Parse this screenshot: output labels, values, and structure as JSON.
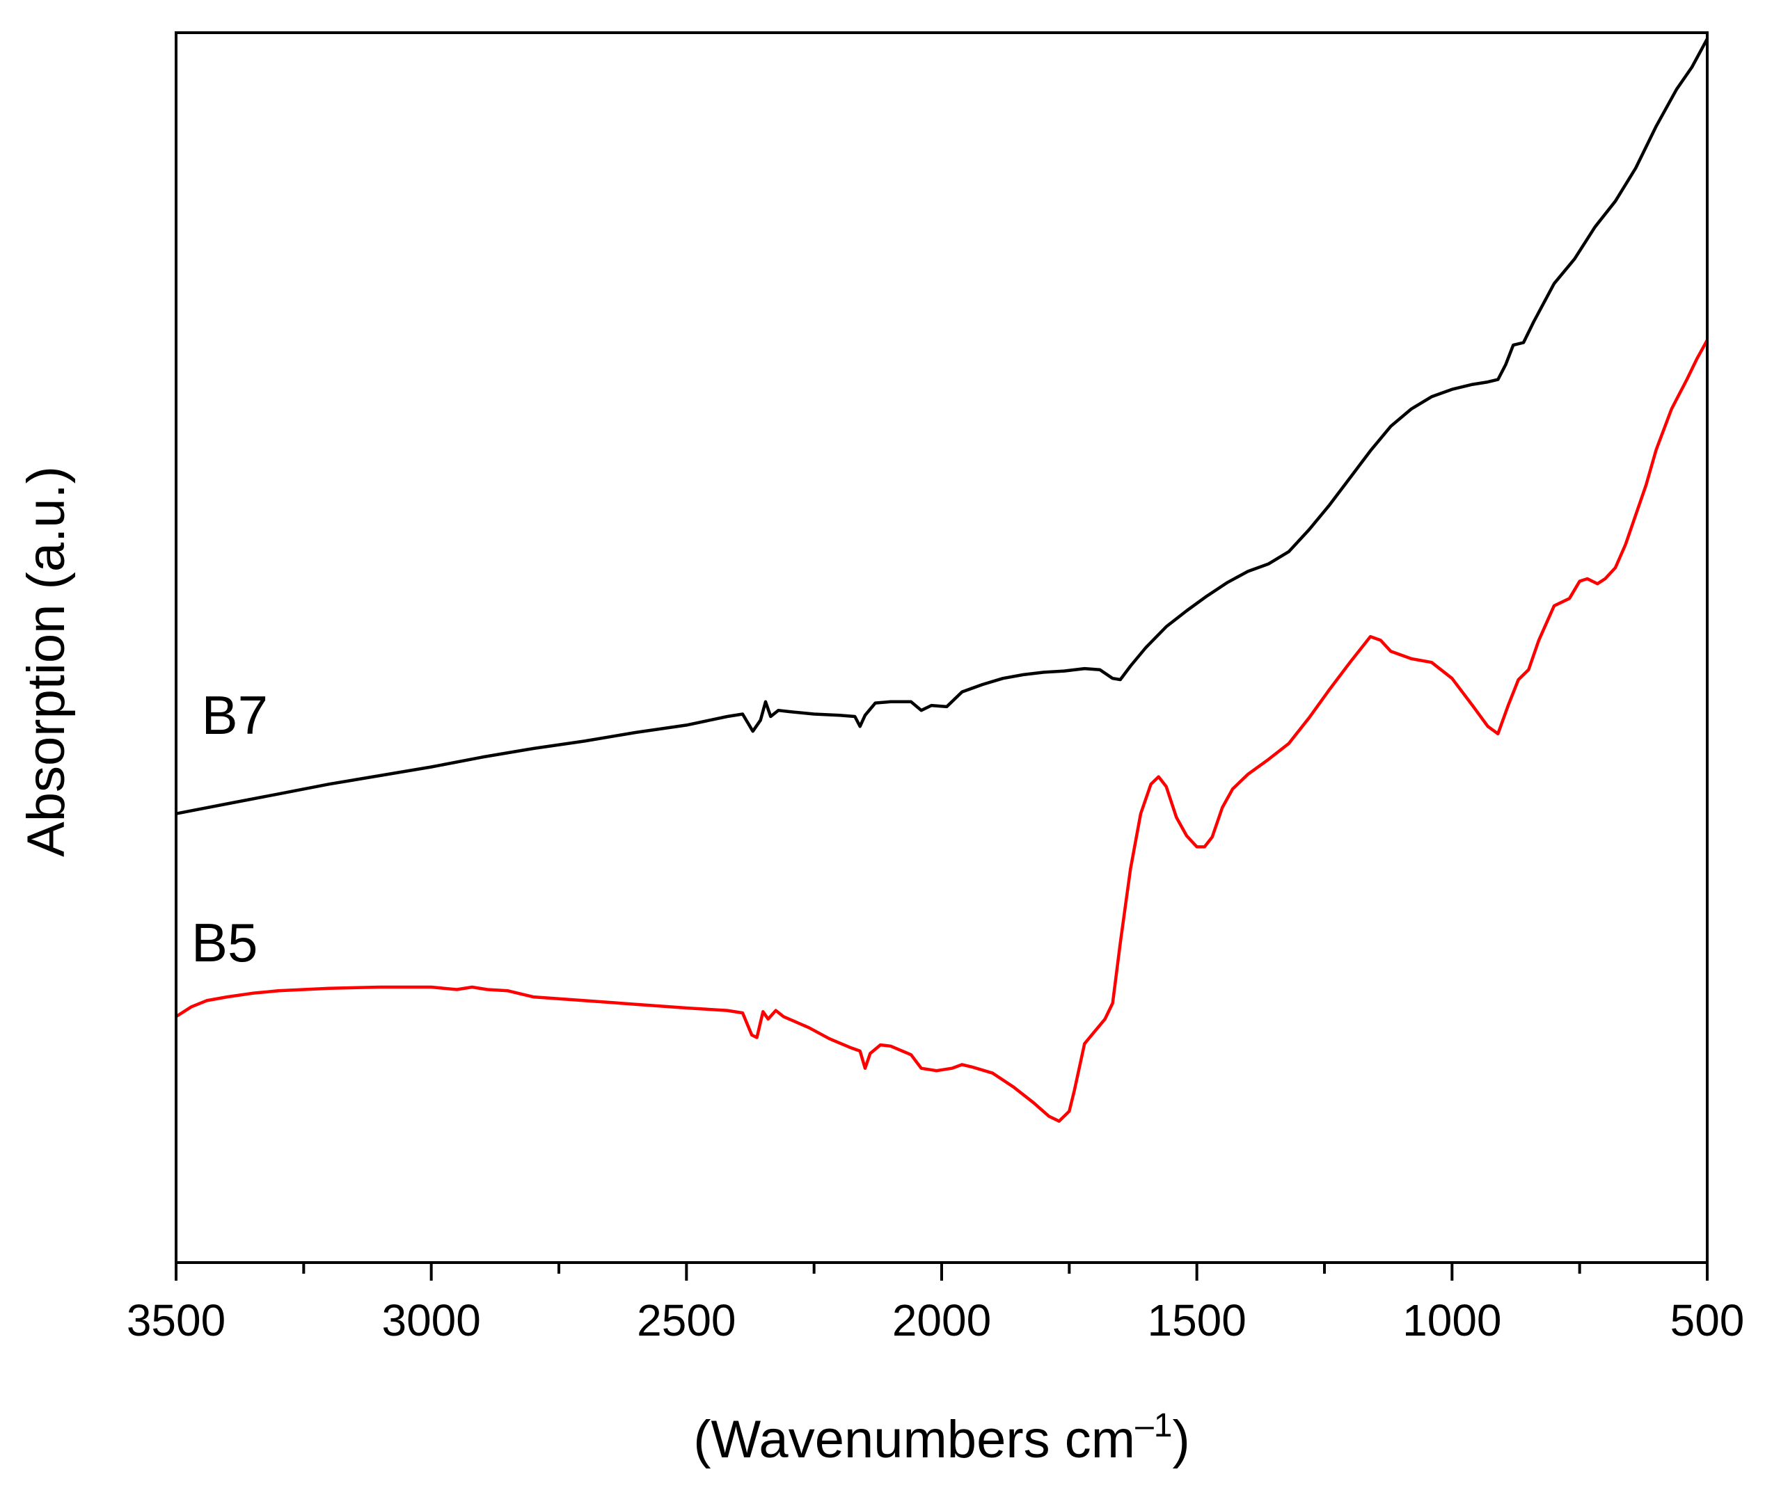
{
  "chart_data": {
    "type": "line",
    "xlabel": "(Wavenumbers cm",
    "xlabel_sup": "–1",
    "xlabel_close": ")",
    "ylabel": "Absorption (a.u.)",
    "xlim": [
      3500,
      500
    ],
    "ylim": [
      0,
      100
    ],
    "x_reversed": true,
    "y_ticks_shown": false,
    "grid": false,
    "x_ticks": [
      {
        "value": 3500,
        "label": "3500"
      },
      {
        "value": 3000,
        "label": "3000"
      },
      {
        "value": 2500,
        "label": "2500"
      },
      {
        "value": 2000,
        "label": "2000"
      },
      {
        "value": 1500,
        "label": "1500"
      },
      {
        "value": 1000,
        "label": "1000"
      },
      {
        "value": 500,
        "label": "500"
      }
    ],
    "x_minor_ticks": [
      3250,
      2750,
      2250,
      1750,
      1250,
      750
    ],
    "series": [
      {
        "name": "B7",
        "color": "#000000",
        "label_at": [
          3450,
          43
        ],
        "points": [
          [
            3500,
            36.5
          ],
          [
            3400,
            37.3
          ],
          [
            3300,
            38.1
          ],
          [
            3200,
            38.9
          ],
          [
            3100,
            39.6
          ],
          [
            3000,
            40.3
          ],
          [
            2900,
            41.1
          ],
          [
            2800,
            41.8
          ],
          [
            2700,
            42.4
          ],
          [
            2600,
            43.1
          ],
          [
            2500,
            43.7
          ],
          [
            2420,
            44.4
          ],
          [
            2390,
            44.6
          ],
          [
            2370,
            43.2
          ],
          [
            2355,
            44.1
          ],
          [
            2345,
            45.6
          ],
          [
            2335,
            44.4
          ],
          [
            2320,
            44.9
          ],
          [
            2300,
            44.8
          ],
          [
            2250,
            44.6
          ],
          [
            2200,
            44.5
          ],
          [
            2170,
            44.4
          ],
          [
            2160,
            43.6
          ],
          [
            2150,
            44.5
          ],
          [
            2130,
            45.5
          ],
          [
            2100,
            45.6
          ],
          [
            2060,
            45.6
          ],
          [
            2040,
            44.9
          ],
          [
            2020,
            45.3
          ],
          [
            1990,
            45.2
          ],
          [
            1960,
            46.4
          ],
          [
            1920,
            47.0
          ],
          [
            1880,
            47.5
          ],
          [
            1840,
            47.8
          ],
          [
            1800,
            48.0
          ],
          [
            1760,
            48.1
          ],
          [
            1720,
            48.3
          ],
          [
            1690,
            48.2
          ],
          [
            1665,
            47.5
          ],
          [
            1650,
            47.4
          ],
          [
            1630,
            48.5
          ],
          [
            1600,
            50.0
          ],
          [
            1560,
            51.7
          ],
          [
            1520,
            53.0
          ],
          [
            1480,
            54.2
          ],
          [
            1440,
            55.3
          ],
          [
            1400,
            56.2
          ],
          [
            1360,
            56.8
          ],
          [
            1320,
            57.8
          ],
          [
            1280,
            59.6
          ],
          [
            1240,
            61.6
          ],
          [
            1200,
            63.8
          ],
          [
            1160,
            66.0
          ],
          [
            1120,
            68.0
          ],
          [
            1080,
            69.4
          ],
          [
            1040,
            70.4
          ],
          [
            1000,
            71.0
          ],
          [
            960,
            71.4
          ],
          [
            930,
            71.6
          ],
          [
            910,
            71.8
          ],
          [
            895,
            73.0
          ],
          [
            880,
            74.6
          ],
          [
            860,
            74.8
          ],
          [
            840,
            76.5
          ],
          [
            800,
            79.6
          ],
          [
            760,
            81.6
          ],
          [
            720,
            84.2
          ],
          [
            680,
            86.3
          ],
          [
            640,
            89.0
          ],
          [
            600,
            92.4
          ],
          [
            560,
            95.4
          ],
          [
            530,
            97.2
          ],
          [
            500,
            99.5
          ]
        ]
      },
      {
        "name": "B5",
        "color": "#ff0000",
        "label_at": [
          3470,
          24.5
        ],
        "points": [
          [
            3500,
            20.0
          ],
          [
            3470,
            20.8
          ],
          [
            3440,
            21.3
          ],
          [
            3400,
            21.6
          ],
          [
            3350,
            21.9
          ],
          [
            3300,
            22.1
          ],
          [
            3250,
            22.2
          ],
          [
            3200,
            22.3
          ],
          [
            3100,
            22.4
          ],
          [
            3000,
            22.4
          ],
          [
            2950,
            22.2
          ],
          [
            2920,
            22.4
          ],
          [
            2890,
            22.2
          ],
          [
            2850,
            22.1
          ],
          [
            2800,
            21.6
          ],
          [
            2700,
            21.3
          ],
          [
            2600,
            21.0
          ],
          [
            2500,
            20.7
          ],
          [
            2420,
            20.5
          ],
          [
            2390,
            20.3
          ],
          [
            2372,
            18.5
          ],
          [
            2362,
            18.3
          ],
          [
            2350,
            20.4
          ],
          [
            2340,
            19.8
          ],
          [
            2325,
            20.5
          ],
          [
            2310,
            20.0
          ],
          [
            2260,
            19.1
          ],
          [
            2220,
            18.2
          ],
          [
            2180,
            17.5
          ],
          [
            2160,
            17.2
          ],
          [
            2150,
            15.8
          ],
          [
            2140,
            17.0
          ],
          [
            2120,
            17.7
          ],
          [
            2100,
            17.6
          ],
          [
            2060,
            16.9
          ],
          [
            2040,
            15.8
          ],
          [
            2010,
            15.6
          ],
          [
            1980,
            15.8
          ],
          [
            1960,
            16.1
          ],
          [
            1940,
            15.9
          ],
          [
            1900,
            15.4
          ],
          [
            1860,
            14.3
          ],
          [
            1820,
            13.0
          ],
          [
            1790,
            11.9
          ],
          [
            1770,
            11.5
          ],
          [
            1750,
            12.3
          ],
          [
            1740,
            14.0
          ],
          [
            1720,
            17.8
          ],
          [
            1700,
            18.8
          ],
          [
            1680,
            19.8
          ],
          [
            1665,
            21.1
          ],
          [
            1650,
            26.0
          ],
          [
            1630,
            32.0
          ],
          [
            1610,
            36.5
          ],
          [
            1590,
            38.9
          ],
          [
            1575,
            39.5
          ],
          [
            1560,
            38.7
          ],
          [
            1540,
            36.2
          ],
          [
            1520,
            34.7
          ],
          [
            1500,
            33.8
          ],
          [
            1485,
            33.8
          ],
          [
            1470,
            34.6
          ],
          [
            1450,
            37.0
          ],
          [
            1430,
            38.5
          ],
          [
            1400,
            39.7
          ],
          [
            1360,
            40.9
          ],
          [
            1320,
            42.2
          ],
          [
            1280,
            44.3
          ],
          [
            1240,
            46.6
          ],
          [
            1200,
            48.8
          ],
          [
            1160,
            50.9
          ],
          [
            1140,
            50.6
          ],
          [
            1120,
            49.7
          ],
          [
            1080,
            49.1
          ],
          [
            1040,
            48.8
          ],
          [
            1000,
            47.5
          ],
          [
            960,
            45.3
          ],
          [
            930,
            43.6
          ],
          [
            910,
            43.0
          ],
          [
            890,
            45.3
          ],
          [
            870,
            47.4
          ],
          [
            850,
            48.2
          ],
          [
            830,
            50.6
          ],
          [
            800,
            53.4
          ],
          [
            770,
            54.0
          ],
          [
            750,
            55.4
          ],
          [
            735,
            55.6
          ],
          [
            715,
            55.2
          ],
          [
            700,
            55.6
          ],
          [
            680,
            56.5
          ],
          [
            660,
            58.4
          ],
          [
            640,
            60.8
          ],
          [
            620,
            63.2
          ],
          [
            600,
            66.1
          ],
          [
            570,
            69.4
          ],
          [
            540,
            71.8
          ],
          [
            520,
            73.5
          ],
          [
            500,
            75.0
          ]
        ]
      }
    ]
  }
}
